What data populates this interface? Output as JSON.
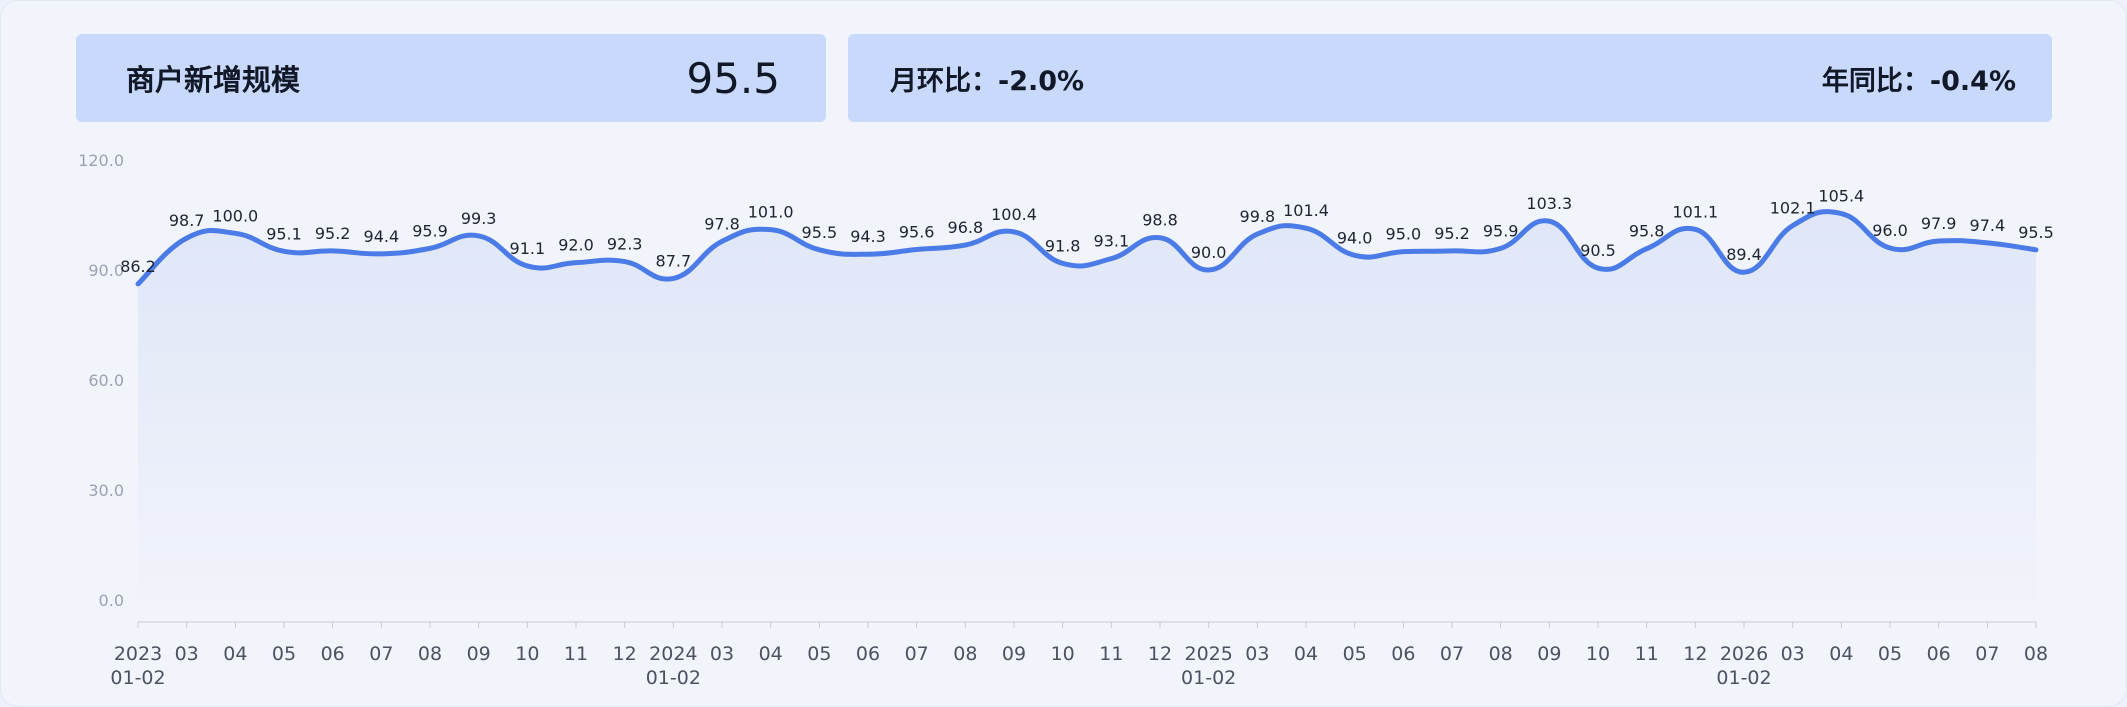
{
  "header": {
    "metric_label": "商户新增规模",
    "metric_value": "95.5",
    "mom_label": "月环比",
    "mom_value": "-2.0%",
    "yoy_label": "年同比",
    "yoy_value": "-0.4%",
    "separator": "："
  },
  "chart_data": {
    "type": "area",
    "title": "",
    "xlabel": "",
    "ylabel": "",
    "ylim": [
      0,
      120
    ],
    "yticks": [
      "0.0",
      "30.0",
      "60.0",
      "90.0",
      "120.0"
    ],
    "grid": false,
    "smooth": true,
    "color": "#4a7be6",
    "categories": [
      "2023-01-02",
      "2023-03",
      "2023-04",
      "2023-05",
      "2023-06",
      "2023-07",
      "2023-08",
      "2023-09",
      "2023-10",
      "2023-11",
      "2023-12",
      "2024-01-02",
      "2024-03",
      "2024-04",
      "2024-05",
      "2024-06",
      "2024-07",
      "2024-08",
      "2024-09",
      "2024-10",
      "2024-11",
      "2024-12",
      "2025-01-02",
      "2025-03",
      "2025-04",
      "2025-05",
      "2025-06",
      "2025-07",
      "2025-08",
      "2025-09",
      "2025-10",
      "2025-11",
      "2025-12",
      "2026-01-02",
      "2026-03",
      "2026-04",
      "2026-05",
      "2026-06",
      "2026-07",
      "2026-08"
    ],
    "x_tick_lines": [
      [
        "2023",
        "01-02"
      ],
      [
        "03"
      ],
      [
        "04"
      ],
      [
        "05"
      ],
      [
        "06"
      ],
      [
        "07"
      ],
      [
        "08"
      ],
      [
        "09"
      ],
      [
        "10"
      ],
      [
        "11"
      ],
      [
        "12"
      ],
      [
        "2024",
        "01-02"
      ],
      [
        "03"
      ],
      [
        "04"
      ],
      [
        "05"
      ],
      [
        "06"
      ],
      [
        "07"
      ],
      [
        "08"
      ],
      [
        "09"
      ],
      [
        "10"
      ],
      [
        "11"
      ],
      [
        "12"
      ],
      [
        "2025",
        "01-02"
      ],
      [
        "03"
      ],
      [
        "04"
      ],
      [
        "05"
      ],
      [
        "06"
      ],
      [
        "07"
      ],
      [
        "08"
      ],
      [
        "09"
      ],
      [
        "10"
      ],
      [
        "11"
      ],
      [
        "12"
      ],
      [
        "2026",
        "01-02"
      ],
      [
        "03"
      ],
      [
        "04"
      ],
      [
        "05"
      ],
      [
        "06"
      ],
      [
        "07"
      ],
      [
        "08"
      ]
    ],
    "values": [
      86.2,
      98.7,
      100.0,
      95.1,
      95.2,
      94.4,
      95.9,
      99.3,
      91.1,
      92.0,
      92.3,
      87.7,
      97.8,
      101.0,
      95.5,
      94.3,
      95.6,
      96.8,
      100.4,
      91.8,
      93.1,
      98.8,
      90.0,
      99.8,
      101.4,
      94.0,
      95.0,
      95.2,
      95.9,
      103.3,
      90.5,
      95.8,
      101.1,
      89.4,
      102.1,
      105.4,
      96.0,
      97.9,
      97.4,
      95.5
    ],
    "data_labels": [
      "86.2",
      "98.7",
      "100.0",
      "95.1",
      "95.2",
      "94.4",
      "95.9",
      "99.3",
      "91.1",
      "92.0",
      "92.3",
      "87.7",
      "97.8",
      "101.0",
      "95.5",
      "94.3",
      "95.6",
      "96.8",
      "100.4",
      "91.8",
      "93.1",
      "98.8",
      "90.0",
      "99.8",
      "101.4",
      "94.0",
      "95.0",
      "95.2",
      "95.9",
      "103.3",
      "90.5",
      "95.8",
      "101.1",
      "89.4",
      "102.1",
      "105.4",
      "96.0",
      "97.9",
      "97.4",
      "95.5"
    ]
  }
}
